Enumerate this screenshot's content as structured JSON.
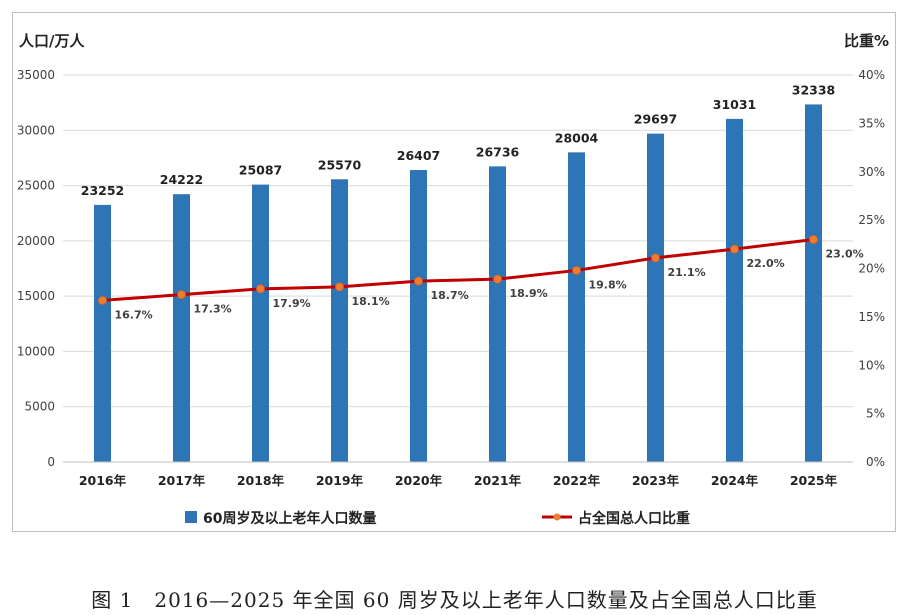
{
  "chart_data": {
    "type": "bar",
    "categories": [
      "2016年",
      "2017年",
      "2018年",
      "2019年",
      "2020年",
      "2021年",
      "2022年",
      "2023年",
      "2024年",
      "2025年"
    ],
    "series": [
      {
        "name": "60周岁及以上老年人口数量",
        "type": "bar",
        "axis": "left",
        "color": "#2e75b6",
        "values": [
          23252,
          24222,
          25087,
          25570,
          26407,
          26736,
          28004,
          29697,
          31031,
          32338
        ],
        "labels": [
          "23252",
          "24222",
          "25087",
          "25570",
          "26407",
          "26736",
          "28004",
          "29697",
          "31031",
          "32338"
        ]
      },
      {
        "name": "占全国总人口比重",
        "type": "line",
        "axis": "right",
        "color": "#c00000",
        "marker_color": "#ed7d31",
        "values": [
          16.7,
          17.3,
          17.9,
          18.1,
          18.7,
          18.9,
          19.8,
          21.1,
          22.0,
          23.0
        ],
        "labels": [
          "16.7%",
          "17.3%",
          "17.9%",
          "18.1%",
          "18.7%",
          "18.9%",
          "19.8%",
          "21.1%",
          "22.0%",
          "23.0%"
        ]
      }
    ],
    "ylabel": "人口/万人",
    "y2label": "比重%",
    "ylim": [
      0,
      35000
    ],
    "y2lim": [
      0,
      40
    ],
    "yticks": [
      "0",
      "5000",
      "10000",
      "15000",
      "20000",
      "25000",
      "30000",
      "35000"
    ],
    "y2ticks": [
      "0%",
      "5%",
      "10%",
      "15%",
      "20%",
      "25%",
      "30%",
      "35%",
      "40%"
    ],
    "grid": true,
    "legend_position": "bottom"
  },
  "caption": "图 1　2016—2025 年全国 60 周岁及以上老年人口数量及占全国总人口比重"
}
